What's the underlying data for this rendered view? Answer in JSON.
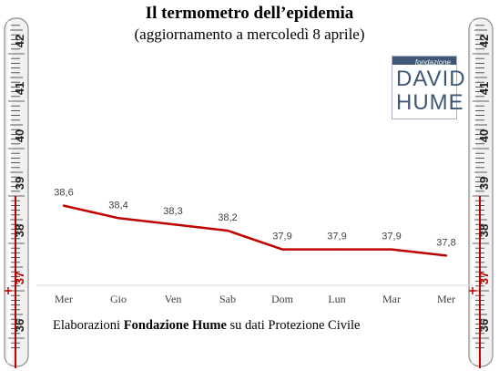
{
  "title": "Il termometro dell’epidemia",
  "subtitle": "(aggiornamento a mercoledì 8 aprile)",
  "logo": {
    "small": "fondazione",
    "line1": "DAVID",
    "line2": "HUME"
  },
  "footer": {
    "pre": "Elaborazioni ",
    "bold": "Fondazione Hume",
    "post": " su dati Protezione Civile"
  },
  "thermometer": {
    "labels": [
      "42",
      "41",
      "40",
      "39",
      "38",
      "37",
      "36"
    ],
    "highlight": "37",
    "fill_level": 39.0
  },
  "colors": {
    "line": "#c00000",
    "red": "#c00000"
  },
  "chart_data": {
    "type": "line",
    "categories": [
      "Mer",
      "Gio",
      "Ven",
      "Sab",
      "Dom",
      "Lun",
      "Mar",
      "Mer"
    ],
    "values": [
      38.6,
      38.4,
      38.3,
      38.2,
      37.9,
      37.9,
      37.9,
      37.8
    ],
    "data_labels": [
      "38,6",
      "38,4",
      "38,3",
      "38,2",
      "37,9",
      "37,9",
      "37,9",
      "37,8"
    ],
    "ylim": [
      35.8,
      42.5
    ],
    "grid": false
  }
}
